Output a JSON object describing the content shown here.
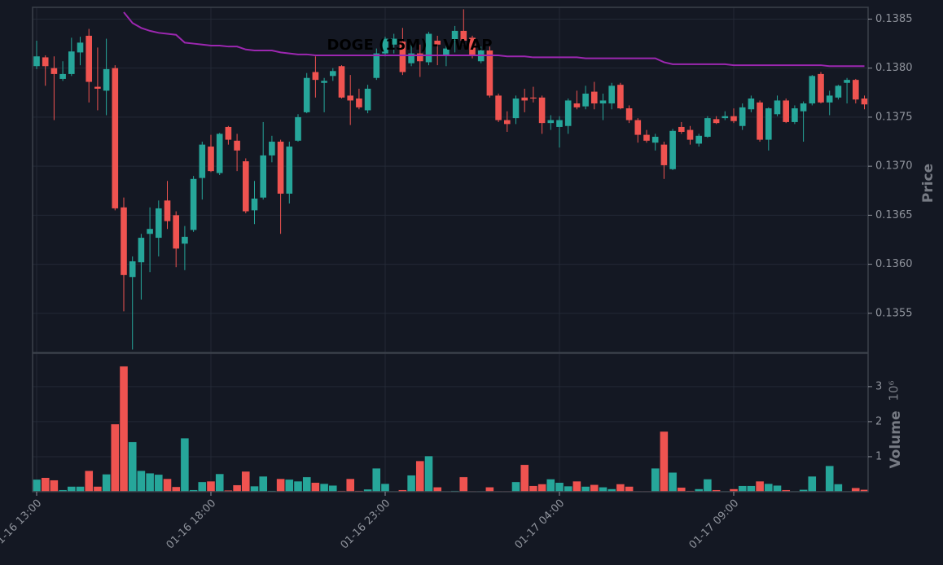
{
  "chart_data": {
    "type": "candlestick",
    "title": "DOGE (15M) - VWAP",
    "ylabel": "Price",
    "up_color": "#26a69a",
    "down_color": "#ef5350",
    "grid": true,
    "categories": [
      "01-16 13:00",
      null,
      null,
      null,
      null,
      null,
      null,
      null,
      null,
      null,
      null,
      null,
      null,
      null,
      null,
      null,
      null,
      null,
      null,
      null,
      "01-16 18:00",
      null,
      null,
      null,
      null,
      null,
      null,
      null,
      null,
      null,
      null,
      null,
      null,
      null,
      null,
      null,
      null,
      null,
      null,
      null,
      "01-16 23:00",
      null,
      null,
      null,
      null,
      null,
      null,
      null,
      null,
      null,
      null,
      null,
      null,
      null,
      null,
      null,
      null,
      null,
      null,
      null,
      "01-17 04:00",
      null,
      null,
      null,
      null,
      null,
      null,
      null,
      null,
      null,
      null,
      null,
      null,
      null,
      null,
      null,
      null,
      null,
      null,
      null,
      "01-17 09:00",
      null,
      null,
      null,
      null,
      null,
      null,
      null,
      null,
      null,
      null,
      null,
      null,
      null,
      null,
      null
    ],
    "open": [
      0.13802,
      0.13811,
      0.138,
      0.13789,
      0.13794,
      0.13816,
      0.13833,
      0.13781,
      0.13777,
      0.138,
      0.13658,
      0.13587,
      0.13602,
      0.13631,
      0.13627,
      0.13665,
      0.1365,
      0.13621,
      0.13635,
      0.13688,
      0.1372,
      0.13693,
      0.1374,
      0.13726,
      0.13705,
      0.13655,
      0.13668,
      0.13711,
      0.13725,
      0.13672,
      0.13726,
      0.13755,
      0.13796,
      0.13785,
      0.13792,
      0.13802,
      0.13772,
      0.13769,
      0.13757,
      0.1379,
      0.13815,
      0.13824,
      0.13827,
      0.13805,
      0.13815,
      0.13806,
      0.13828,
      0.13813,
      0.13828,
      0.13838,
      0.13831,
      0.13807,
      0.13818,
      0.13772,
      0.13747,
      0.13749,
      0.1377,
      0.1377,
      0.1377,
      0.13744,
      0.1374,
      0.13741,
      0.13764,
      0.13761,
      0.13776,
      0.13764,
      0.13764,
      0.13783,
      0.13759,
      0.13747,
      0.13732,
      0.13724,
      0.13722,
      0.13697,
      0.1374,
      0.13737,
      0.13723,
      0.1373,
      0.13748,
      0.13749,
      0.13751,
      0.13741,
      0.13758,
      0.13765,
      0.13727,
      0.13753,
      0.13767,
      0.13745,
      0.13756,
      0.13764,
      0.13794,
      0.13765,
      0.1377,
      0.13785,
      0.13788,
      0.13769
    ],
    "high": [
      0.13828,
      0.13813,
      0.13812,
      0.13807,
      0.13831,
      0.13832,
      0.1384,
      0.13821,
      0.1383,
      0.13803,
      0.13668,
      0.13608,
      0.13631,
      0.13658,
      0.13665,
      0.13685,
      0.13654,
      0.13639,
      0.1369,
      0.13725,
      0.13732,
      0.13734,
      0.13741,
      0.13733,
      0.13708,
      0.13685,
      0.13745,
      0.13731,
      0.13727,
      0.13725,
      0.13753,
      0.13795,
      0.13812,
      0.1379,
      0.138,
      0.13803,
      0.13793,
      0.13779,
      0.13783,
      0.1382,
      0.13832,
      0.13835,
      0.13841,
      0.13824,
      0.13824,
      0.13837,
      0.13833,
      0.13824,
      0.13843,
      0.1386,
      0.13833,
      0.13822,
      0.13822,
      0.13774,
      0.13756,
      0.13772,
      0.13779,
      0.13781,
      0.13772,
      0.13752,
      0.13751,
      0.13769,
      0.13777,
      0.13782,
      0.13786,
      0.13774,
      0.13785,
      0.13785,
      0.13762,
      0.13749,
      0.13737,
      0.13733,
      0.13725,
      0.13738,
      0.13745,
      0.13741,
      0.13733,
      0.13751,
      0.13751,
      0.13756,
      0.13759,
      0.13764,
      0.13772,
      0.13767,
      0.1376,
      0.13772,
      0.13769,
      0.13762,
      0.13766,
      0.13793,
      0.13796,
      0.13777,
      0.13783,
      0.1379,
      0.13789,
      0.13772
    ],
    "low": [
      0.13799,
      0.13782,
      0.13747,
      0.13787,
      0.13792,
      0.13803,
      0.13765,
      0.13757,
      0.13752,
      0.13655,
      0.13552,
      0.13513,
      0.13564,
      0.13592,
      0.13608,
      0.13636,
      0.13597,
      0.13594,
      0.13633,
      0.13666,
      0.13694,
      0.13691,
      0.13722,
      0.13695,
      0.13652,
      0.13641,
      0.13666,
      0.13704,
      0.13631,
      0.13662,
      0.13725,
      0.13754,
      0.1377,
      0.13755,
      0.13787,
      0.13769,
      0.13742,
      0.13758,
      0.13754,
      0.13788,
      0.13812,
      0.13815,
      0.13793,
      0.13802,
      0.13791,
      0.13803,
      0.13803,
      0.13802,
      0.13816,
      0.13824,
      0.1381,
      0.13805,
      0.1377,
      0.13745,
      0.13735,
      0.13743,
      0.13755,
      0.13765,
      0.13733,
      0.13737,
      0.13719,
      0.13733,
      0.13758,
      0.13758,
      0.13758,
      0.13747,
      0.13758,
      0.13758,
      0.13744,
      0.13724,
      0.13724,
      0.13716,
      0.13687,
      0.13696,
      0.13733,
      0.13722,
      0.1372,
      0.13729,
      0.13743,
      0.13747,
      0.13744,
      0.13737,
      0.13755,
      0.13725,
      0.13716,
      0.13751,
      0.13744,
      0.13743,
      0.13725,
      0.13762,
      0.13764,
      0.13752,
      0.13768,
      0.13764,
      0.13764,
      0.13758
    ],
    "close": [
      0.13812,
      0.13802,
      0.13794,
      0.13794,
      0.13817,
      0.13826,
      0.13786,
      0.13779,
      0.13799,
      0.13657,
      0.13589,
      0.13603,
      0.13627,
      0.13636,
      0.13657,
      0.13644,
      0.13616,
      0.13628,
      0.13687,
      0.13722,
      0.13695,
      0.13733,
      0.13727,
      0.13716,
      0.13654,
      0.13667,
      0.13711,
      0.13725,
      0.13672,
      0.1372,
      0.1375,
      0.1379,
      0.13788,
      0.13787,
      0.13797,
      0.1377,
      0.13767,
      0.1376,
      0.13779,
      0.13815,
      0.1383,
      0.1383,
      0.13796,
      0.13815,
      0.13807,
      0.13835,
      0.13824,
      0.1382,
      0.13838,
      0.13828,
      0.13813,
      0.13818,
      0.13772,
      0.13747,
      0.13743,
      0.13769,
      0.13767,
      0.13769,
      0.13744,
      0.13747,
      0.13747,
      0.13767,
      0.1376,
      0.13774,
      0.13764,
      0.13767,
      0.13782,
      0.13759,
      0.13747,
      0.13732,
      0.13726,
      0.1373,
      0.13701,
      0.13736,
      0.13735,
      0.13727,
      0.13731,
      0.13749,
      0.13744,
      0.13751,
      0.13746,
      0.1376,
      0.13769,
      0.13727,
      0.13759,
      0.13767,
      0.13745,
      0.13759,
      0.13764,
      0.13792,
      0.13765,
      0.13772,
      0.13782,
      0.13788,
      0.13768,
      0.13763
    ],
    "ylim": [
      0.1351,
      0.13862
    ],
    "yticks": [
      0.1355,
      {
        "value": 0.136,
        "label": "0.1360"
      },
      0.1365,
      {
        "value": 0.137,
        "label": "0.1370"
      },
      0.1375,
      {
        "value": 0.138,
        "label": "0.1380"
      },
      0.1385
    ],
    "vwap": {
      "color": "#9c27b0",
      "values": [
        null,
        null,
        null,
        null,
        null,
        null,
        null,
        null,
        null,
        null,
        0.13857,
        0.13846,
        0.13841,
        0.13838,
        0.13836,
        0.13835,
        0.13834,
        0.13826,
        0.13825,
        0.13824,
        0.13823,
        0.13823,
        0.13822,
        0.13822,
        0.13819,
        0.13818,
        0.13818,
        0.13818,
        0.13816,
        0.13815,
        0.13814,
        0.13814,
        0.13813,
        0.13813,
        0.13813,
        0.13813,
        0.13813,
        0.13813,
        0.13813,
        0.13813,
        0.13813,
        0.13813,
        0.13813,
        0.13813,
        0.13813,
        0.13813,
        0.13813,
        0.13813,
        0.13813,
        0.13813,
        0.13813,
        0.13813,
        0.13813,
        0.13813,
        0.13812,
        0.13812,
        0.13812,
        0.13811,
        0.13811,
        0.13811,
        0.13811,
        0.13811,
        0.13811,
        0.1381,
        0.1381,
        0.1381,
        0.1381,
        0.1381,
        0.1381,
        0.1381,
        0.1381,
        0.1381,
        0.13806,
        0.13804,
        0.13804,
        0.13804,
        0.13804,
        0.13804,
        0.13804,
        0.13804,
        0.13803,
        0.13803,
        0.13803,
        0.13803,
        0.13803,
        0.13803,
        0.13803,
        0.13803,
        0.13803,
        0.13803,
        0.13803,
        0.13802,
        0.13802,
        0.13802,
        0.13802,
        0.13802
      ]
    },
    "volume": {
      "ylabel": "Volume",
      "scale_label": "10⁶",
      "ylim": [
        0,
        3.95
      ],
      "yticks": [
        1,
        2,
        3
      ],
      "values": [
        0.35,
        0.4,
        0.33,
        0.05,
        0.15,
        0.15,
        0.6,
        0.15,
        0.5,
        1.93,
        3.58,
        1.42,
        0.6,
        0.53,
        0.49,
        0.37,
        0.14,
        1.53,
        0.05,
        0.28,
        0.3,
        0.51,
        0.04,
        0.19,
        0.58,
        0.16,
        0.44,
        0.03,
        0.37,
        0.35,
        0.3,
        0.42,
        0.26,
        0.23,
        0.18,
        0.03,
        0.37,
        0.03,
        0.07,
        0.67,
        0.23,
        0.02,
        0.05,
        0.47,
        0.88,
        1.02,
        0.13,
        0.02,
        0.03,
        0.42,
        0.02,
        0.02,
        0.13,
        0.02,
        0.02,
        0.28,
        0.77,
        0.17,
        0.22,
        0.36,
        0.26,
        0.16,
        0.3,
        0.15,
        0.2,
        0.13,
        0.08,
        0.22,
        0.15,
        0.02,
        0.02,
        0.67,
        1.72,
        0.55,
        0.12,
        0.03,
        0.08,
        0.36,
        0.05,
        0.02,
        0.08,
        0.17,
        0.17,
        0.3,
        0.23,
        0.18,
        0.05,
        0.02,
        0.06,
        0.44,
        0.02,
        0.74,
        0.22,
        0.02,
        0.11,
        0.06
      ]
    }
  }
}
